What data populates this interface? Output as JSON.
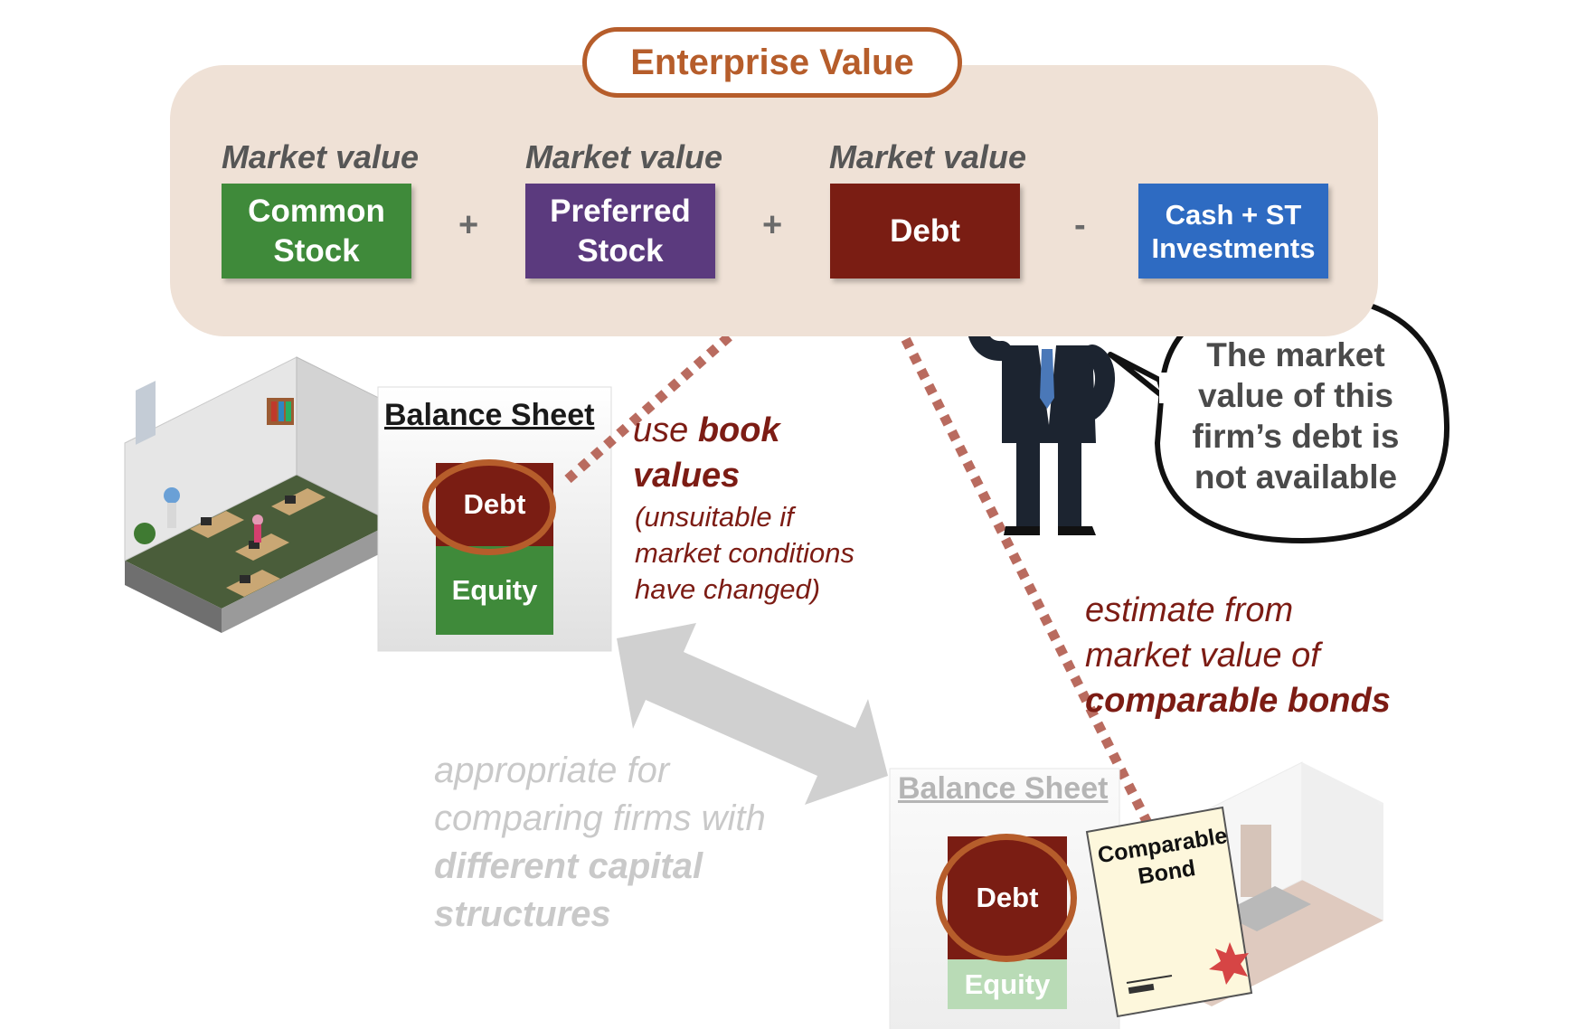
{
  "header": {
    "title": "Enterprise Value"
  },
  "formula": {
    "market_value_label": "Market value",
    "common_stock": [
      "Common",
      "Stock"
    ],
    "preferred_stock": [
      "Preferred",
      "Stock"
    ],
    "debt": "Debt",
    "cash": [
      "Cash + ST",
      "Investments"
    ],
    "plus": "+",
    "minus": "-"
  },
  "balance_sheet_top": {
    "title": "Balance Sheet",
    "debt": "Debt",
    "equity": "Equity"
  },
  "book_values_note": {
    "prefix": "use ",
    "bold": "book",
    "bold2": "values",
    "paren": [
      "(unsuitable if",
      "market conditions",
      "have changed)"
    ]
  },
  "speech_bubble": {
    "lines": [
      "The market",
      "value of this",
      "firm’s debt is",
      "not available"
    ]
  },
  "comparable_note": {
    "lines": [
      "estimate from",
      "market value of"
    ],
    "bold": "comparable bonds"
  },
  "grey_note": {
    "lines": [
      "appropriate for",
      "comparing firms with"
    ],
    "bold": [
      "different capital",
      "structures"
    ]
  },
  "balance_sheet_bottom": {
    "title": "Balance Sheet",
    "debt": "Debt",
    "equity": "Equity"
  },
  "comparable_bond": {
    "lines": [
      "Comparable",
      "Bond"
    ]
  },
  "colors": {
    "green": "#3f8a3a",
    "purple": "#5b3a7e",
    "maroon": "#7a1d13",
    "blue": "#2e6bc2",
    "orange": "#b65d2b",
    "panel": "#efe1d6"
  }
}
